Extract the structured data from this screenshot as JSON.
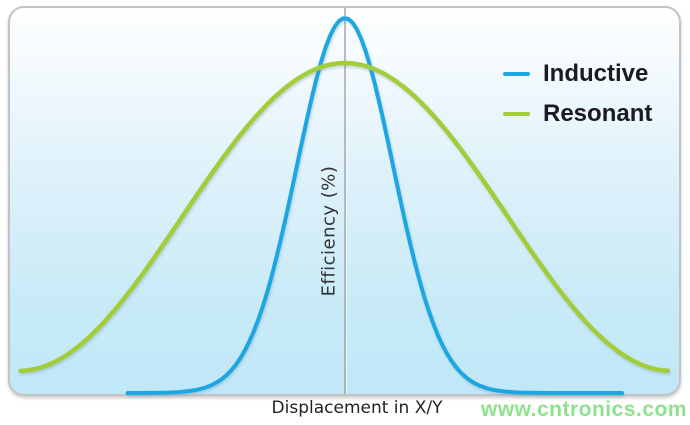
{
  "chart_data": {
    "type": "line",
    "title": "",
    "xlabel": "Displacement in X/Y",
    "ylabel": "Efficiency (%)",
    "legend_position": "top-right",
    "grid": false,
    "axes_note": "no numeric tick labels; single vertical reference line at zero displacement",
    "series": [
      {
        "name": "Inductive",
        "color": "#1ea7e2",
        "stroke_width": 4,
        "shape": "gaussian",
        "center": 0,
        "peak_efficiency": 1.0,
        "sigma_frac": 0.1425,
        "d_min": -0.645,
        "d_max": 0.822
      },
      {
        "name": "Resonant",
        "color": "#a3cd39",
        "stroke_width": 4.5,
        "shape": "raised_cosine",
        "center": 0,
        "peak_efficiency": 0.88,
        "end_efficiency": 0.059,
        "half_width_frac": 0.967,
        "d_min": -0.963,
        "d_max": 0.958
      }
    ]
  },
  "axis": {
    "center_line_color": "#9a9a9a"
  },
  "watermark": "www.cntronics.com"
}
